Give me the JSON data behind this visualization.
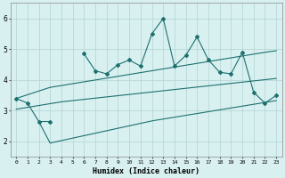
{
  "x": [
    0,
    1,
    2,
    3,
    4,
    5,
    6,
    7,
    8,
    9,
    10,
    11,
    12,
    13,
    14,
    15,
    16,
    17,
    18,
    19,
    20,
    21,
    22,
    23
  ],
  "y_main": [
    3.4,
    3.25,
    2.65,
    2.65,
    null,
    null,
    4.85,
    4.3,
    4.2,
    4.5,
    4.65,
    4.45,
    5.5,
    6.0,
    4.45,
    4.8,
    5.4,
    4.65,
    4.25,
    4.2,
    4.9,
    3.6,
    3.25,
    3.5
  ],
  "y_upper": [
    3.4,
    3.52,
    3.64,
    3.76,
    3.82,
    3.88,
    3.94,
    4.0,
    4.06,
    4.12,
    4.18,
    4.24,
    4.3,
    4.36,
    4.42,
    4.48,
    4.54,
    4.6,
    4.66,
    4.72,
    4.78,
    4.84,
    4.9,
    4.95
  ],
  "y_mid": [
    3.05,
    3.11,
    3.17,
    3.23,
    3.29,
    3.33,
    3.37,
    3.41,
    3.45,
    3.49,
    3.53,
    3.57,
    3.61,
    3.65,
    3.69,
    3.73,
    3.77,
    3.81,
    3.85,
    3.89,
    3.93,
    3.97,
    4.01,
    4.05
  ],
  "y_lower": [
    null,
    null,
    2.65,
    1.95,
    2.03,
    2.11,
    2.19,
    2.27,
    2.35,
    2.43,
    2.51,
    2.59,
    2.67,
    2.73,
    2.79,
    2.85,
    2.91,
    2.97,
    3.03,
    3.09,
    3.15,
    3.21,
    3.27,
    3.33
  ],
  "bg_color": "#d8f0f0",
  "grid_color": "#b8d8d8",
  "line_color": "#1e7070",
  "xlabel": "Humidex (Indice chaleur)",
  "ylim": [
    1.5,
    6.5
  ],
  "xlim": [
    -0.5,
    23.5
  ],
  "yticks": [
    2,
    3,
    4,
    5,
    6
  ],
  "xticks": [
    0,
    1,
    2,
    3,
    4,
    5,
    6,
    7,
    8,
    9,
    10,
    11,
    12,
    13,
    14,
    15,
    16,
    17,
    18,
    19,
    20,
    21,
    22,
    23
  ]
}
